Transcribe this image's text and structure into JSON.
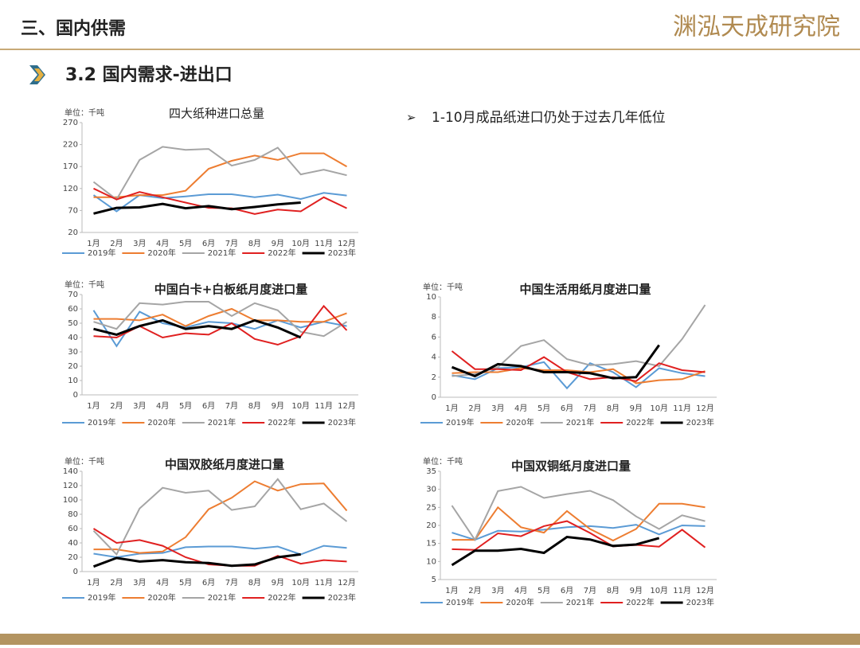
{
  "header": {
    "section": "三、国内供需",
    "logo": "渊泓天成研究院"
  },
  "subtitle": "3.2 国内需求-进出口",
  "note": "1-10月成品纸进口仍处于过去几年低位",
  "chart_data": [
    {
      "type": "line",
      "title": "四大纸种进口总量",
      "unit": "单位：千吨",
      "categories": [
        "1月",
        "2月",
        "3月",
        "4月",
        "5月",
        "6月",
        "7月",
        "8月",
        "9月",
        "10月",
        "11月",
        "12月"
      ],
      "ylim": [
        20,
        270
      ],
      "yticks": [
        20,
        70,
        120,
        170,
        220,
        270
      ],
      "series": [
        {
          "name": "2019年",
          "color": "#5b9bd5",
          "values": [
            105,
            68,
            105,
            98,
            102,
            107,
            107,
            100,
            106,
            96,
            110,
            104
          ]
        },
        {
          "name": "2020年",
          "color": "#ed7d31",
          "values": [
            100,
            100,
            105,
            105,
            115,
            165,
            183,
            195,
            185,
            200,
            200,
            170
          ]
        },
        {
          "name": "2021年",
          "color": "#a5a5a5",
          "values": [
            135,
            95,
            185,
            215,
            208,
            210,
            172,
            185,
            213,
            152,
            163,
            150
          ]
        },
        {
          "name": "2022年",
          "color": "#e02020",
          "values": [
            120,
            95,
            112,
            100,
            88,
            76,
            75,
            62,
            72,
            68,
            100,
            75
          ]
        },
        {
          "name": "2023年",
          "color": "#000000",
          "values": [
            63,
            76,
            77,
            85,
            75,
            80,
            73,
            78,
            84,
            88,
            null,
            null
          ]
        }
      ]
    },
    {
      "type": "line",
      "title": "中国白卡+白板纸月度进口量",
      "unit": "单位：千吨",
      "categories": [
        "1月",
        "2月",
        "3月",
        "4月",
        "5月",
        "6月",
        "7月",
        "8月",
        "9月",
        "10月",
        "11月",
        "12月"
      ],
      "ylim": [
        0,
        70
      ],
      "yticks": [
        0,
        10,
        20,
        30,
        40,
        50,
        60,
        70
      ],
      "series": [
        {
          "name": "2019年",
          "color": "#5b9bd5",
          "values": [
            59,
            34,
            58,
            50,
            47,
            51,
            50,
            46,
            52,
            47,
            51,
            48
          ]
        },
        {
          "name": "2020年",
          "color": "#ed7d31",
          "values": [
            53,
            53,
            52,
            56,
            48,
            55,
            60,
            52,
            52,
            51,
            51,
            57
          ]
        },
        {
          "name": "2021年",
          "color": "#a5a5a5",
          "values": [
            51,
            46,
            64,
            63,
            65,
            65,
            55,
            64,
            59,
            44,
            41,
            51
          ]
        },
        {
          "name": "2022年",
          "color": "#e02020",
          "values": [
            41,
            40,
            48,
            40,
            43,
            42,
            50,
            39,
            35,
            41,
            62,
            45
          ]
        },
        {
          "name": "2023年",
          "color": "#000000",
          "values": [
            46,
            42,
            48,
            52,
            46,
            48,
            46,
            52,
            47,
            40,
            null,
            null
          ]
        }
      ]
    },
    {
      "type": "line",
      "title": "中国生活用纸月度进口量",
      "unit": "单位：千吨",
      "categories": [
        "1月",
        "2月",
        "3月",
        "4月",
        "5月",
        "6月",
        "7月",
        "8月",
        "9月",
        "10月",
        "11月",
        "12月"
      ],
      "ylim": [
        0,
        10
      ],
      "yticks": [
        0,
        2,
        4,
        6,
        8,
        10
      ],
      "series": [
        {
          "name": "2019年",
          "color": "#5b9bd5",
          "values": [
            2.2,
            1.8,
            2.9,
            3.0,
            3.5,
            0.9,
            3.4,
            2.5,
            1.0,
            2.9,
            2.4,
            2.1
          ]
        },
        {
          "name": "2020年",
          "color": "#ed7d31",
          "values": [
            2.4,
            2.5,
            2.5,
            2.9,
            2.7,
            2.7,
            2.5,
            2.8,
            1.4,
            1.7,
            1.8,
            2.6
          ]
        },
        {
          "name": "2021年",
          "color": "#a5a5a5",
          "values": [
            2.1,
            2.3,
            3.0,
            5.1,
            5.7,
            3.8,
            3.2,
            3.3,
            3.6,
            3.1,
            5.8,
            9.2
          ]
        },
        {
          "name": "2022年",
          "color": "#e02020",
          "values": [
            4.6,
            2.8,
            2.8,
            2.7,
            4.0,
            2.5,
            1.8,
            2.0,
            1.6,
            3.4,
            2.7,
            2.5
          ]
        },
        {
          "name": "2023年",
          "color": "#000000",
          "values": [
            3.0,
            2.1,
            3.3,
            3.1,
            2.5,
            2.5,
            2.4,
            1.9,
            2.0,
            5.2,
            null,
            null
          ]
        }
      ]
    },
    {
      "type": "line",
      "title": "中国双胶纸月度进口量",
      "unit": "单位：千吨",
      "categories": [
        "1月",
        "2月",
        "3月",
        "4月",
        "5月",
        "6月",
        "7月",
        "8月",
        "9月",
        "10月",
        "11月",
        "12月"
      ],
      "ylim": [
        0,
        140
      ],
      "yticks": [
        0,
        20,
        40,
        60,
        80,
        100,
        120,
        140
      ],
      "series": [
        {
          "name": "2019年",
          "color": "#5b9bd5",
          "values": [
            25,
            20,
            25,
            26,
            34,
            35,
            35,
            32,
            35,
            24,
            36,
            33
          ]
        },
        {
          "name": "2020年",
          "color": "#ed7d31",
          "values": [
            31,
            31,
            26,
            28,
            48,
            87,
            103,
            126,
            113,
            122,
            123,
            85
          ]
        },
        {
          "name": "2021年",
          "color": "#a5a5a5",
          "values": [
            57,
            24,
            88,
            117,
            110,
            113,
            86,
            91,
            129,
            87,
            95,
            70
          ]
        },
        {
          "name": "2022年",
          "color": "#e02020",
          "values": [
            60,
            40,
            44,
            36,
            20,
            10,
            8,
            8,
            22,
            11,
            16,
            14
          ]
        },
        {
          "name": "2023年",
          "color": "#000000",
          "values": [
            7,
            19,
            14,
            16,
            13,
            12,
            8,
            10,
            20,
            24,
            null,
            null
          ]
        }
      ]
    },
    {
      "type": "line",
      "title": "中国双铜纸月度进口量",
      "unit": "单位：千吨",
      "categories": [
        "1月",
        "2月",
        "3月",
        "4月",
        "5月",
        "6月",
        "7月",
        "8月",
        "9月",
        "10月",
        "11月",
        "12月"
      ],
      "ylim": [
        5,
        35
      ],
      "yticks": [
        5,
        10,
        15,
        20,
        25,
        30,
        35
      ],
      "series": [
        {
          "name": "2019年",
          "color": "#5b9bd5",
          "values": [
            18,
            16,
            18.5,
            18.3,
            18.8,
            19.5,
            19.8,
            19.3,
            20.2,
            17.5,
            20,
            19.8
          ]
        },
        {
          "name": "2020年",
          "color": "#ed7d31",
          "values": [
            16,
            16,
            25,
            19.5,
            18,
            24,
            19,
            15.8,
            19,
            26,
            26,
            25
          ]
        },
        {
          "name": "2021年",
          "color": "#a5a5a5",
          "values": [
            25.5,
            16,
            29.5,
            30.7,
            27.6,
            28.7,
            29.6,
            27,
            22.5,
            19,
            22.8,
            21.2
          ]
        },
        {
          "name": "2022年",
          "color": "#e02020",
          "values": [
            13.4,
            13.2,
            17.8,
            17,
            19.8,
            21.2,
            17.9,
            14.2,
            14.6,
            14.1,
            18.8,
            13.9
          ]
        },
        {
          "name": "2023年",
          "color": "#000000",
          "values": [
            9,
            13,
            13,
            13.5,
            12.4,
            16.8,
            16.1,
            14.3,
            14.7,
            16.5,
            null,
            null
          ]
        }
      ]
    }
  ]
}
